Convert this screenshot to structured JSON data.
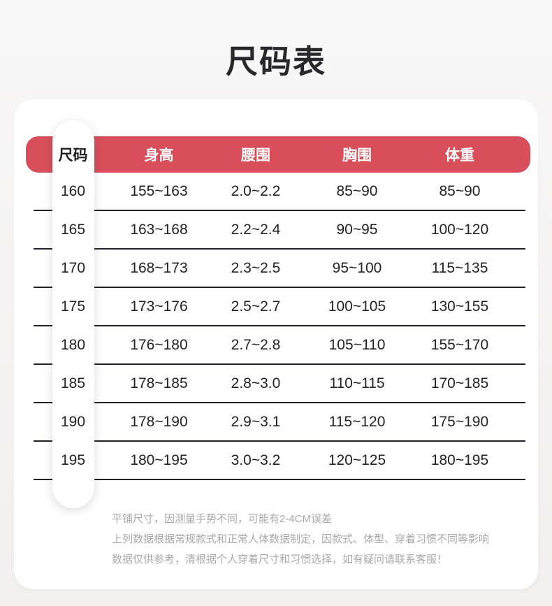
{
  "page": {
    "title": "尺码表"
  },
  "table": {
    "columns": [
      "尺码",
      "身高",
      "腰围",
      "胸围",
      "体重"
    ],
    "rows": [
      {
        "size": "160",
        "height": "155~163",
        "waist": "2.0~2.2",
        "chest": "85~90",
        "weight": "85~90"
      },
      {
        "size": "165",
        "height": "163~168",
        "waist": "2.2~2.4",
        "chest": "90~95",
        "weight": "100~120"
      },
      {
        "size": "170",
        "height": "168~173",
        "waist": "2.3~2.5",
        "chest": "95~100",
        "weight": "115~135"
      },
      {
        "size": "175",
        "height": "173~176",
        "waist": "2.5~2.7",
        "chest": "100~105",
        "weight": "130~155"
      },
      {
        "size": "180",
        "height": "176~180",
        "waist": "2.7~2.8",
        "chest": "105~110",
        "weight": "155~170"
      },
      {
        "size": "185",
        "height": "178~185",
        "waist": "2.8~3.0",
        "chest": "110~115",
        "weight": "170~185"
      },
      {
        "size": "190",
        "height": "178~190",
        "waist": "2.9~3.1",
        "chest": "115~120",
        "weight": "175~190"
      },
      {
        "size": "195",
        "height": "180~195",
        "waist": "3.0~3.2",
        "chest": "120~125",
        "weight": "180~195"
      }
    ]
  },
  "notes": {
    "line1": "平铺尺寸，因测量手势不同，可能有2-4CM误差",
    "line2": "上列数据根据常规款式和正常人体数据制定，因款式、体型、穿着习惯不同等影响",
    "line3": "数据仅供参考，清根据个人穿着尺寸和习惯选择，如有疑问请联系客服！"
  },
  "colors": {
    "accent_red": "#d84f5b",
    "divider": "#22222a",
    "data_text": "#222228",
    "note_text": "#a9a9a9",
    "page_background": "#f5f3f2",
    "card_background": "#ffffff"
  }
}
